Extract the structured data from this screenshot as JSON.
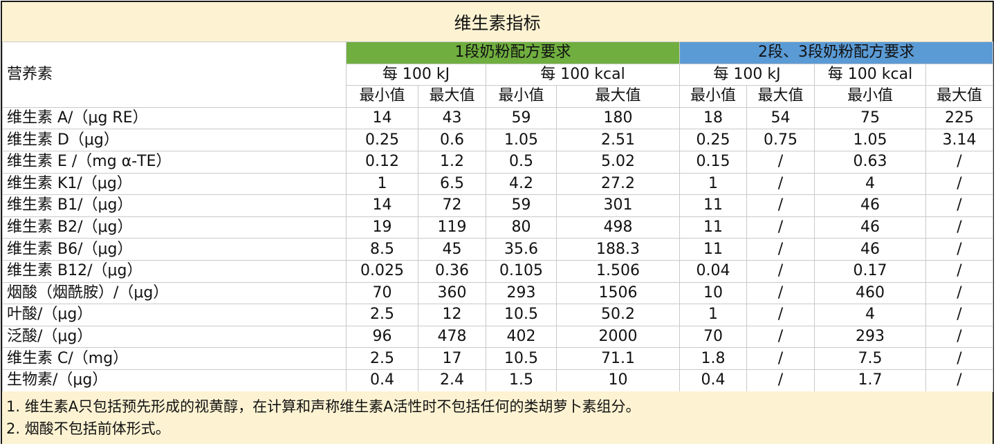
{
  "title": "维生素指标",
  "header": {
    "nutrient_label": "营养素",
    "group1": "1段奶粉配方要求",
    "group2": "2段、3段奶粉配方要求",
    "per_kj": "每 100 kJ",
    "per_kcal": "每 100 kcal",
    "min": "最小值",
    "max": "最大值"
  },
  "colors": {
    "group1_bg": "#6fae3f",
    "group2_bg": "#5b9bd5",
    "band_bg": "#fdf3d2"
  },
  "rows": [
    {
      "name": "维生素 A/（μg RE）",
      "v": [
        "14",
        "43",
        "59",
        "180",
        "18",
        "54",
        "75",
        "225"
      ]
    },
    {
      "name": "维生素 D（μg）",
      "v": [
        "0.25",
        "0.6",
        "1.05",
        "2.51",
        "0.25",
        "0.75",
        "1.05",
        "3.14"
      ]
    },
    {
      "name": "维生素 E /（mg α-TE）",
      "v": [
        "0.12",
        "1.2",
        "0.5",
        "5.02",
        "0.15",
        "/",
        "0.63",
        "/"
      ]
    },
    {
      "name": "维生素 K1/（μg）",
      "v": [
        "1",
        "6.5",
        "4.2",
        "27.2",
        "1",
        "/",
        "4",
        "/"
      ]
    },
    {
      "name": "维生素 B1/（μg）",
      "v": [
        "14",
        "72",
        "59",
        "301",
        "11",
        "/",
        "46",
        "/"
      ]
    },
    {
      "name": "维生素 B2/（μg）",
      "v": [
        "19",
        "119",
        "80",
        "498",
        "11",
        "/",
        "46",
        "/"
      ]
    },
    {
      "name": "维生素 B6/（μg）",
      "v": [
        "8.5",
        "45",
        "35.6",
        "188.3",
        "11",
        "/",
        "46",
        "/"
      ]
    },
    {
      "name": "维生素 B12/（μg）",
      "v": [
        "0.025",
        "0.36",
        "0.105",
        "1.506",
        "0.04",
        "/",
        "0.17",
        "/"
      ]
    },
    {
      "name": "烟酸（烟酰胺）/（μg）",
      "v": [
        "70",
        "360",
        "293",
        "1506",
        "10",
        "/",
        "460",
        "/"
      ]
    },
    {
      "name": "叶酸/（μg）",
      "v": [
        "2.5",
        "12",
        "10.5",
        "50.2",
        "1",
        "/",
        "4",
        "/"
      ]
    },
    {
      "name": "泛酸/（μg）",
      "v": [
        "96",
        "478",
        "402",
        "2000",
        "70",
        "/",
        "293",
        "/"
      ]
    },
    {
      "name": "维生素 C/（mg）",
      "v": [
        "2.5",
        "17",
        "10.5",
        "71.1",
        "1.8",
        "/",
        "7.5",
        "/"
      ]
    },
    {
      "name": "生物素/（μg）",
      "v": [
        "0.4",
        "2.4",
        "1.5",
        "10",
        "0.4",
        "/",
        "1.7",
        "/"
      ]
    }
  ],
  "notes": [
    "1. 维生素A只包括预先形成的视黄醇，在计算和声称维生素A活性时不包括任何的类胡萝卜素组分。",
    "2. 烟酸不包括前体形式。"
  ]
}
